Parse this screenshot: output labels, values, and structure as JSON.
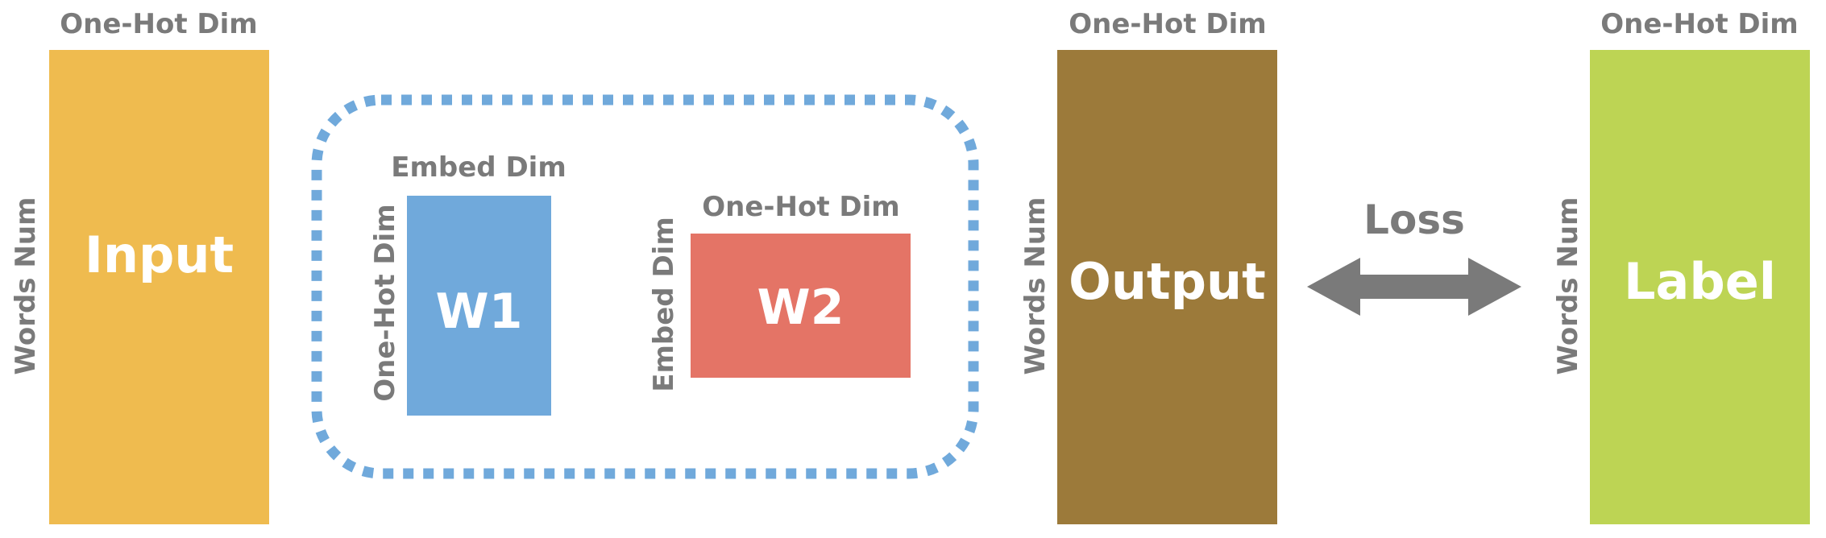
{
  "diagram": {
    "input": {
      "title": "Input",
      "top_label": "One-Hot Dim",
      "side_label": "Words Num"
    },
    "w1": {
      "title": "W1",
      "top_label": "Embed Dim",
      "side_label": "One-Hot Dim"
    },
    "w2": {
      "title": "W2",
      "top_label": "One-Hot Dim",
      "side_label": "Embed Dim"
    },
    "output": {
      "title": "Output",
      "top_label": "One-Hot Dim",
      "side_label": "Words Num"
    },
    "loss": {
      "label": "Loss"
    },
    "label": {
      "title": "Label",
      "top_label": "One-Hot Dim",
      "side_label": "Words Num"
    }
  },
  "colors": {
    "input": "#efbb4f",
    "w1": "#70a9db",
    "w2": "#e47466",
    "output": "#9c7a3a",
    "label": "#bdd454",
    "text_gray": "#7a7a7a",
    "dotted_border": "#70a9db"
  }
}
